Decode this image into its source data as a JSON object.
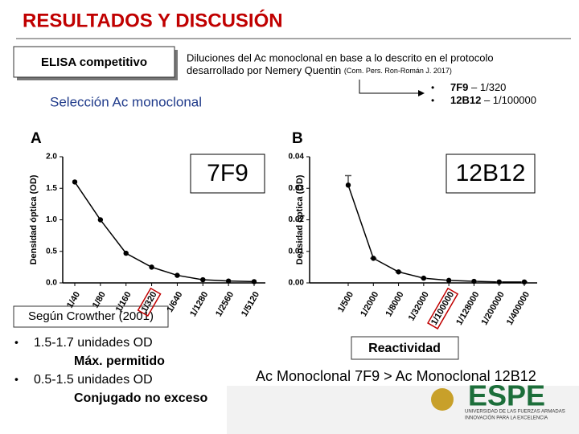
{
  "slide": {
    "title": "RESULTADOS Y DISCUSIÓN",
    "elisa_box": "ELISA competitivo",
    "dilution_text": [
      "Diluciones del Ac monoclonal en base a lo descrito en el protocolo",
      "desarrollado por Nemery Quentin"
    ],
    "dilution_ref": "(Com. Pers. Ron-Román J. 2017)",
    "selected": [
      {
        "bold": "7F9",
        "text": "– 1/320"
      },
      {
        "bold": "12B12",
        "text": "– 1/100000"
      }
    ],
    "selection_label": "Selección Ac monoclonal",
    "crowther_box": "Según Crowther (2001)",
    "crowther_items": [
      "1.5-1.7 unidades OD",
      "Máx. permitido",
      "0.5-1.5 unidades OD",
      "Conjugado no exceso"
    ],
    "reactivity_box": "Reactividad",
    "conclusion": "Ac Monoclonal 7F9 > Ac Monoclonal 12B12",
    "logo_lines": [
      "UNIVERSIDAD DE LAS FUERZAS ARMADAS",
      "INNOVACIÓN PARA LA EXCELENCIA"
    ]
  },
  "chart_data": [
    {
      "type": "line",
      "panel": "A",
      "annotation": "7F9",
      "y_label": "Densidad óptica (OD)",
      "categories": [
        "1/40",
        "1/80",
        "1/160",
        "1/320",
        "1/640",
        "1/1280",
        "1/2560",
        "1/5120"
      ],
      "values": [
        1.6,
        1.0,
        0.47,
        0.25,
        0.12,
        0.05,
        0.03,
        0.02
      ],
      "highlight_index": 3,
      "color": "#000000",
      "ylim": [
        0,
        2
      ],
      "yticks": [
        {
          "value": 0,
          "label": "0.0"
        },
        {
          "value": 0.5,
          "label": "0.5"
        },
        {
          "value": 1,
          "label": "1.0"
        },
        {
          "value": 1.5,
          "label": "1.5"
        },
        {
          "value": 2,
          "label": "2.0"
        }
      ]
    },
    {
      "type": "line",
      "panel": "B",
      "annotation": "12B12",
      "y_label": "Densidad óptica (OD)",
      "categories": [
        "1/500",
        "1/2000",
        "1/8000",
        "1/32000",
        "1/100000",
        "1/128000",
        "1/200000",
        "1/400000"
      ],
      "values": [
        0.031,
        0.0078,
        0.0035,
        0.0015,
        0.0008,
        0.0005,
        0.0003,
        0.0003
      ],
      "errors": [
        0.003,
        0,
        0,
        0,
        0,
        0,
        0,
        0
      ],
      "highlight_index": 4,
      "color": "#000000",
      "ylim": [
        0,
        0.04
      ],
      "yticks": [
        {
          "value": 0,
          "label": "0.00"
        },
        {
          "value": 0.01,
          "label": "0.01"
        },
        {
          "value": 0.02,
          "label": "0.02"
        },
        {
          "value": 0.03,
          "label": "0.03"
        },
        {
          "value": 0.04,
          "label": "0.04"
        }
      ]
    }
  ]
}
